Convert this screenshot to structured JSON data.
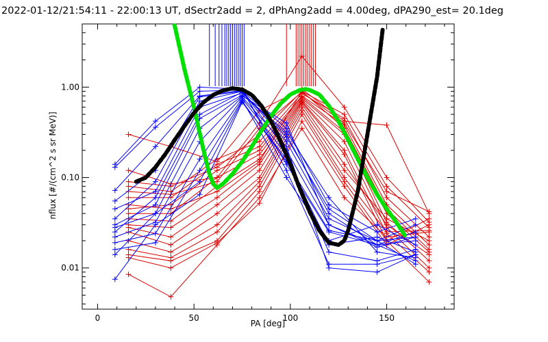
{
  "chart_data": {
    "type": "line",
    "title": "2022-01-12/21:54:11 - 22:00:13 UT, dSectr2add = 2, dPhAng2add = 4.00deg, dPA290_est=  20.1deg",
    "xlabel": "PA [deg]",
    "ylabel": "nflux [#/(cm^2 s sr MeV)]",
    "xlim": [
      -8,
      185
    ],
    "ylim": [
      0.0035,
      5.0
    ],
    "yscale": "log",
    "xticks": [
      0,
      50,
      100,
      150
    ],
    "xtick_labels": [
      "0",
      "50",
      "100",
      "150"
    ],
    "yticks": [
      0.01,
      0.1,
      1.0
    ],
    "ytick_labels": [
      "0.01",
      "0.10",
      "1.00"
    ],
    "grid": false,
    "legend": "none",
    "colors": {
      "blue": "#0000ff",
      "red": "#dd0000",
      "green_fit": "#00e000",
      "black_fit": "#000000"
    },
    "blue_markers_pa": [
      58,
      61,
      63,
      64.5,
      66,
      67,
      68,
      69,
      70,
      71,
      72,
      73,
      74,
      75,
      76
    ],
    "red_markers_pa": [
      98,
      103,
      104,
      105,
      106,
      107,
      108,
      109,
      110,
      111,
      112,
      113
    ],
    "blue_curves": [
      {
        "x": [
          9,
          30,
          53,
          75,
          98,
          120,
          145,
          165
        ],
        "y": [
          0.14,
          0.42,
          1.0,
          0.95,
          0.12,
          0.011,
          0.011,
          0.014
        ]
      },
      {
        "x": [
          9,
          30,
          53,
          75,
          98,
          120,
          145,
          165
        ],
        "y": [
          0.13,
          0.36,
          0.9,
          0.93,
          0.14,
          0.025,
          0.018,
          0.02
        ]
      },
      {
        "x": [
          9,
          30,
          53,
          75,
          98,
          120,
          145,
          165
        ],
        "y": [
          0.072,
          0.22,
          0.8,
          0.92,
          0.2,
          0.03,
          0.017,
          0.022
        ]
      },
      {
        "x": [
          9,
          30,
          53,
          75,
          98,
          120,
          145,
          165
        ],
        "y": [
          0.055,
          0.12,
          0.78,
          0.9,
          0.25,
          0.035,
          0.02,
          0.03
        ]
      },
      {
        "x": [
          9,
          30,
          53,
          75,
          98,
          120,
          145,
          165
        ],
        "y": [
          0.045,
          0.07,
          0.6,
          0.86,
          0.3,
          0.04,
          0.018,
          0.025
        ]
      },
      {
        "x": [
          9,
          30,
          53,
          75,
          98,
          120,
          145,
          165
        ],
        "y": [
          0.03,
          0.05,
          0.45,
          0.82,
          0.32,
          0.06,
          0.015,
          0.013
        ]
      },
      {
        "x": [
          9,
          30,
          53,
          75,
          98,
          120,
          145,
          165
        ],
        "y": [
          0.028,
          0.04,
          0.35,
          0.8,
          0.4,
          0.03,
          0.018,
          0.012
        ]
      },
      {
        "x": [
          9,
          30,
          53,
          75,
          98,
          120,
          145,
          165
        ],
        "y": [
          0.022,
          0.032,
          0.25,
          0.78,
          0.22,
          0.01,
          0.009,
          0.014
        ]
      },
      {
        "x": [
          9,
          30,
          53,
          75,
          98,
          120,
          145,
          165
        ],
        "y": [
          0.019,
          0.024,
          0.16,
          0.75,
          0.18,
          0.015,
          0.012,
          0.016
        ]
      },
      {
        "x": [
          9,
          30,
          53,
          75,
          98,
          120,
          145,
          165
        ],
        "y": [
          0.016,
          0.019,
          0.12,
          0.72,
          0.1,
          0.02,
          0.03,
          0.018
        ]
      },
      {
        "x": [
          9,
          30,
          53,
          75,
          98,
          120,
          145,
          165
        ],
        "y": [
          0.014,
          0.04,
          0.09,
          0.7,
          0.15,
          0.026,
          0.02,
          0.011
        ]
      },
      {
        "x": [
          9,
          30,
          53,
          75,
          98,
          120,
          145,
          165
        ],
        "y": [
          0.0075,
          0.03,
          0.065,
          0.68,
          0.16,
          0.018,
          0.022,
          0.015
        ]
      },
      {
        "x": [
          9,
          30,
          53,
          75,
          98,
          120,
          145,
          165
        ],
        "y": [
          0.025,
          0.06,
          0.5,
          0.88,
          0.28,
          0.045,
          0.02,
          0.022
        ]
      },
      {
        "x": [
          9,
          30,
          53,
          75,
          98,
          120,
          145,
          165
        ],
        "y": [
          0.035,
          0.09,
          0.7,
          0.9,
          0.35,
          0.05,
          0.025,
          0.035
        ]
      }
    ],
    "red_curves": [
      {
        "x": [
          16,
          38,
          62,
          84,
          106,
          128,
          150,
          172
        ],
        "y": [
          0.3,
          0.22,
          0.15,
          0.55,
          0.95,
          0.42,
          0.38,
          0.04
        ]
      },
      {
        "x": [
          16,
          38,
          62,
          84,
          106,
          128,
          150,
          172
        ],
        "y": [
          0.12,
          0.085,
          0.1,
          0.4,
          2.2,
          0.6,
          0.1,
          0.032
        ]
      },
      {
        "x": [
          16,
          38,
          62,
          84,
          106,
          128,
          150,
          172
        ],
        "y": [
          0.09,
          0.08,
          0.13,
          0.3,
          0.9,
          0.5,
          0.08,
          0.028
        ]
      },
      {
        "x": [
          16,
          38,
          62,
          84,
          106,
          128,
          150,
          172
        ],
        "y": [
          0.08,
          0.07,
          0.16,
          0.25,
          0.85,
          0.45,
          0.06,
          0.022
        ]
      },
      {
        "x": [
          16,
          38,
          62,
          84,
          106,
          128,
          150,
          172
        ],
        "y": [
          0.06,
          0.06,
          0.14,
          0.22,
          0.8,
          0.38,
          0.05,
          0.018
        ]
      },
      {
        "x": [
          16,
          38,
          62,
          84,
          106,
          128,
          150,
          172
        ],
        "y": [
          0.045,
          0.05,
          0.12,
          0.2,
          0.78,
          0.32,
          0.04,
          0.015
        ]
      },
      {
        "x": [
          16,
          38,
          62,
          84,
          106,
          128,
          150,
          172
        ],
        "y": [
          0.04,
          0.04,
          0.1,
          0.18,
          0.75,
          0.3,
          0.032,
          0.012
        ]
      },
      {
        "x": [
          16,
          38,
          62,
          84,
          106,
          128,
          150,
          172
        ],
        "y": [
          0.035,
          0.033,
          0.08,
          0.16,
          0.72,
          0.25,
          0.028,
          0.01
        ]
      },
      {
        "x": [
          16,
          38,
          62,
          84,
          106,
          128,
          150,
          172
        ],
        "y": [
          0.03,
          0.028,
          0.06,
          0.14,
          0.7,
          0.2,
          0.024,
          0.009
        ]
      },
      {
        "x": [
          16,
          38,
          62,
          84,
          106,
          128,
          150,
          172
        ],
        "y": [
          0.028,
          0.022,
          0.05,
          0.12,
          0.68,
          0.18,
          0.02,
          0.007
        ]
      },
      {
        "x": [
          16,
          38,
          62,
          84,
          106,
          128,
          150,
          172
        ],
        "y": [
          0.025,
          0.018,
          0.04,
          0.1,
          0.65,
          0.14,
          0.03,
          0.014
        ]
      },
      {
        "x": [
          16,
          38,
          62,
          84,
          106,
          128,
          150,
          172
        ],
        "y": [
          0.02,
          0.015,
          0.03,
          0.09,
          0.6,
          0.12,
          0.035,
          0.02
        ]
      },
      {
        "x": [
          16,
          38,
          62,
          84,
          106,
          128,
          150,
          172
        ],
        "y": [
          0.016,
          0.013,
          0.025,
          0.08,
          0.55,
          0.1,
          0.025,
          0.026
        ]
      },
      {
        "x": [
          16,
          38,
          62,
          84,
          106,
          128,
          150,
          172
        ],
        "y": [
          0.014,
          0.012,
          0.02,
          0.07,
          0.5,
          0.09,
          0.02,
          0.035
        ]
      },
      {
        "x": [
          16,
          38,
          62,
          84,
          106,
          128,
          150,
          172
        ],
        "y": [
          0.013,
          0.01,
          0.019,
          0.052,
          0.42,
          0.08,
          0.018,
          0.03
        ]
      },
      {
        "x": [
          16,
          38,
          62,
          84,
          106,
          128,
          150,
          172
        ],
        "y": [
          0.0085,
          0.0048,
          0.018,
          0.06,
          0.35,
          0.06,
          0.022,
          0.025
        ]
      },
      {
        "x": [
          16,
          38,
          62,
          84,
          106,
          128,
          150,
          172
        ],
        "y": [
          0.05,
          0.045,
          0.07,
          0.15,
          0.9,
          0.35,
          0.045,
          0.016
        ]
      },
      {
        "x": [
          16,
          38,
          62,
          84,
          106,
          128,
          150,
          172
        ],
        "y": [
          0.07,
          0.065,
          0.09,
          0.35,
          0.88,
          0.4,
          0.07,
          0.042
        ]
      }
    ],
    "green_fit": {
      "x": [
        40,
        45,
        50,
        55,
        58,
        60,
        62,
        65,
        70,
        75,
        80,
        85,
        90,
        95,
        100,
        105,
        108,
        110,
        115,
        120,
        125,
        130,
        135,
        140,
        145,
        150,
        155,
        160
      ],
      "y": [
        4.8,
        1.6,
        0.6,
        0.2,
        0.11,
        0.085,
        0.077,
        0.085,
        0.11,
        0.15,
        0.22,
        0.33,
        0.48,
        0.66,
        0.83,
        0.93,
        0.95,
        0.93,
        0.83,
        0.62,
        0.42,
        0.26,
        0.16,
        0.1,
        0.065,
        0.045,
        0.032,
        0.022
      ]
    },
    "black_fit": {
      "x": [
        20,
        25,
        30,
        35,
        40,
        45,
        50,
        55,
        60,
        65,
        70,
        75,
        80,
        85,
        90,
        95,
        100,
        105,
        110,
        115,
        120,
        125,
        128,
        130,
        135,
        140,
        145,
        148
      ],
      "y": [
        0.09,
        0.1,
        0.13,
        0.18,
        0.26,
        0.37,
        0.52,
        0.68,
        0.82,
        0.92,
        0.97,
        0.94,
        0.82,
        0.62,
        0.42,
        0.25,
        0.14,
        0.075,
        0.042,
        0.026,
        0.019,
        0.018,
        0.02,
        0.026,
        0.07,
        0.3,
        1.3,
        4.5
      ]
    }
  }
}
